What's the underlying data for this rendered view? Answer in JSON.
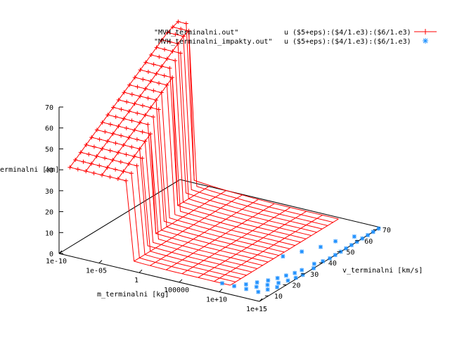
{
  "chart_data": {
    "type": "surface3d",
    "zlabel": "h_terminalni [km]",
    "xlabel": "m_terminalni [kg]",
    "ylabel": "v_terminalni [km/s]",
    "x_scale": "log",
    "x_ticks": [
      "1e-10",
      "1e-05",
      "1",
      "100000",
      "1e+10",
      "1e+15"
    ],
    "x_tick_values": [
      -10,
      -5,
      0,
      5,
      10,
      15
    ],
    "y_ticks": [
      "10",
      "20",
      "30",
      "40",
      "50",
      "60",
      "70"
    ],
    "y_tick_values": [
      10,
      20,
      30,
      40,
      50,
      60,
      70
    ],
    "z_ticks": [
      "0",
      "10",
      "20",
      "30",
      "40",
      "50",
      "60",
      "70"
    ],
    "z_tick_values": [
      0,
      10,
      20,
      30,
      40,
      50,
      60,
      70
    ],
    "xlim": [
      -10,
      15
    ],
    "ylim": [
      5,
      72
    ],
    "zlim": [
      0,
      70
    ],
    "grid": false,
    "legend_position": "top-right",
    "v_values": [
      11,
      14,
      17,
      20,
      23,
      26,
      29,
      32,
      35,
      38,
      41,
      44,
      47,
      50,
      53,
      56,
      59,
      62,
      65,
      68,
      71
    ],
    "series": [
      {
        "name": "\"MVH_terminalni.out\"",
        "using": "u ($5+eps):($4/1.e3):($6/1.e3)",
        "style": "linespoints",
        "marker": "plus",
        "color": "#ff0000",
        "log10_mass": [
          -10,
          -9,
          -8,
          -7,
          -6,
          -5,
          -4,
          -3,
          -2,
          -1,
          0,
          1,
          2,
          3,
          4,
          5,
          6,
          7,
          8,
          9,
          10
        ],
        "h_plateau": [
          38,
          40,
          42,
          44,
          46,
          48,
          50,
          52,
          54,
          56,
          58,
          60,
          62,
          64,
          66,
          68,
          70,
          72,
          74,
          75,
          76
        ],
        "h_low": [
          3,
          2.5,
          2,
          1.6,
          1.3,
          1,
          0.8,
          0.6,
          0.5,
          0.3,
          0.2,
          0.1,
          0,
          0,
          0,
          0,
          0,
          0,
          0,
          0,
          0
        ],
        "mass_exponent_at_plateau": 6
      },
      {
        "name": "\"MVH_terminalni_impakty.out\"",
        "using": "u ($5+eps):($4/1.e3):($6/1.e3)",
        "style": "points",
        "marker": "star",
        "color": "#1e90ff",
        "points": [
          {
            "log10_mass": 9.0,
            "v": 11,
            "h": 0
          },
          {
            "log10_mass": 10.5,
            "v": 11,
            "h": 0
          },
          {
            "log10_mass": 12.0,
            "v": 11,
            "h": 0
          },
          {
            "log10_mass": 13.5,
            "v": 11,
            "h": 0
          },
          {
            "log10_mass": 11.3,
            "v": 14,
            "h": 0
          },
          {
            "log10_mass": 12.6,
            "v": 14,
            "h": 0
          },
          {
            "log10_mass": 14.0,
            "v": 14,
            "h": 0
          },
          {
            "log10_mass": 12.0,
            "v": 17,
            "h": 0
          },
          {
            "log10_mass": 13.3,
            "v": 17,
            "h": 0
          },
          {
            "log10_mass": 14.5,
            "v": 17,
            "h": 0
          },
          {
            "log10_mass": 12.7,
            "v": 20,
            "h": 0
          },
          {
            "log10_mass": 14.0,
            "v": 20,
            "h": 0
          },
          {
            "log10_mass": 13.2,
            "v": 23,
            "h": 0
          },
          {
            "log10_mass": 14.5,
            "v": 23,
            "h": 0
          },
          {
            "log10_mass": 13.6,
            "v": 26,
            "h": 0
          },
          {
            "log10_mass": 14.8,
            "v": 26,
            "h": 0
          },
          {
            "log10_mass": 14.0,
            "v": 29,
            "h": 0
          },
          {
            "log10_mass": 15.0,
            "v": 29,
            "h": 0
          },
          {
            "log10_mass": 14.2,
            "v": 32,
            "h": 0
          },
          {
            "log10_mass": 15.0,
            "v": 35,
            "h": 0
          },
          {
            "log10_mass": 14.4,
            "v": 38,
            "h": 0
          },
          {
            "log10_mass": 14.8,
            "v": 41,
            "h": 0
          },
          {
            "log10_mass": 15.0,
            "v": 44,
            "h": 0
          },
          {
            "log10_mass": 15.0,
            "v": 47,
            "h": 0
          },
          {
            "log10_mass": 15.0,
            "v": 50,
            "h": 0
          },
          {
            "log10_mass": 15.0,
            "v": 53,
            "h": 0
          },
          {
            "log10_mass": 15.0,
            "v": 56,
            "h": 0
          },
          {
            "log10_mass": 15.0,
            "v": 59,
            "h": 0
          },
          {
            "log10_mass": 15.0,
            "v": 62,
            "h": 0
          },
          {
            "log10_mass": 15.0,
            "v": 65,
            "h": 0
          },
          {
            "log10_mass": 15.0,
            "v": 68,
            "h": 0
          },
          {
            "log10_mass": 15.0,
            "v": 71,
            "h": 0
          },
          {
            "log10_mass": 10.5,
            "v": 38,
            "h": 0
          },
          {
            "log10_mass": 11.5,
            "v": 44,
            "h": 0
          },
          {
            "log10_mass": 12.5,
            "v": 50,
            "h": 0
          },
          {
            "log10_mass": 13.0,
            "v": 56,
            "h": 0
          },
          {
            "log10_mass": 14.0,
            "v": 62,
            "h": 0
          }
        ]
      }
    ]
  }
}
